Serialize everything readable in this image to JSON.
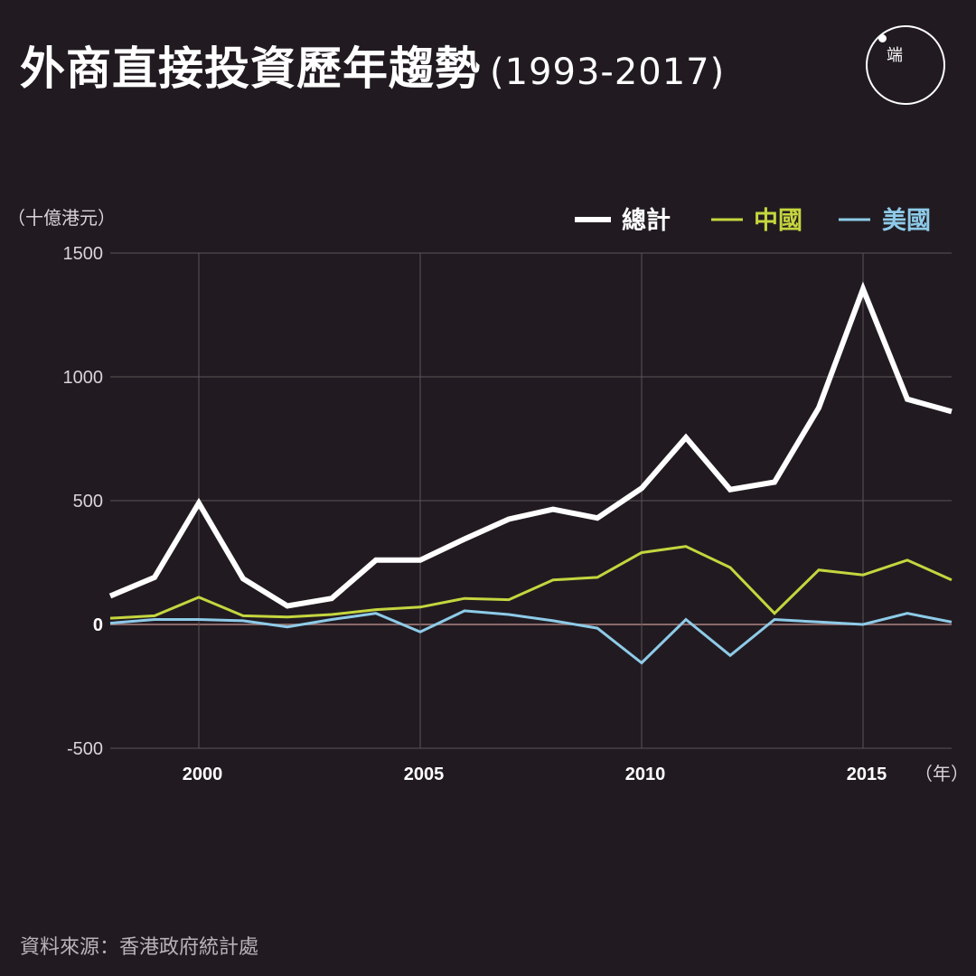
{
  "header": {
    "title": "外商直接投資歷年趨勢",
    "subtitle": "(1993-2017)",
    "logo_text": "端"
  },
  "footer": {
    "source": "資料來源：香港政府統計處"
  },
  "colors": {
    "background": "#211b21",
    "total": "#ffffff",
    "china": "#c5d63e",
    "usa": "#8ecbe8",
    "grid": "#5c5358",
    "zero_line": "#8a6a6a"
  },
  "chart_data": {
    "type": "line",
    "ylabel": "（十億港元）",
    "xlabel": "（年）",
    "ylim": [
      -500,
      1500
    ],
    "yticks": [
      -500,
      0,
      500,
      1000,
      1500
    ],
    "xticks": [
      2000,
      2005,
      2010,
      2015
    ],
    "grid": true,
    "legend_position": "top-right",
    "x": [
      1998,
      1999,
      2000,
      2001,
      2002,
      2003,
      2004,
      2005,
      2006,
      2007,
      2008,
      2009,
      2010,
      2011,
      2012,
      2013,
      2014,
      2015,
      2016,
      2017
    ],
    "series": [
      {
        "name": "總計",
        "color": "#ffffff",
        "values": [
          115,
          190,
          490,
          185,
          75,
          105,
          260,
          260,
          345,
          425,
          465,
          430,
          550,
          755,
          545,
          575,
          875,
          1355,
          910,
          860
        ]
      },
      {
        "name": "中國",
        "color": "#c5d63e",
        "values": [
          25,
          35,
          110,
          35,
          30,
          40,
          60,
          70,
          105,
          100,
          180,
          190,
          290,
          315,
          230,
          45,
          220,
          200,
          260,
          180
        ]
      },
      {
        "name": "美國",
        "color": "#8ecbe8",
        "values": [
          5,
          20,
          20,
          15,
          -10,
          20,
          45,
          -30,
          55,
          40,
          15,
          -15,
          -155,
          20,
          -125,
          20,
          10,
          0,
          45,
          10
        ]
      }
    ]
  }
}
